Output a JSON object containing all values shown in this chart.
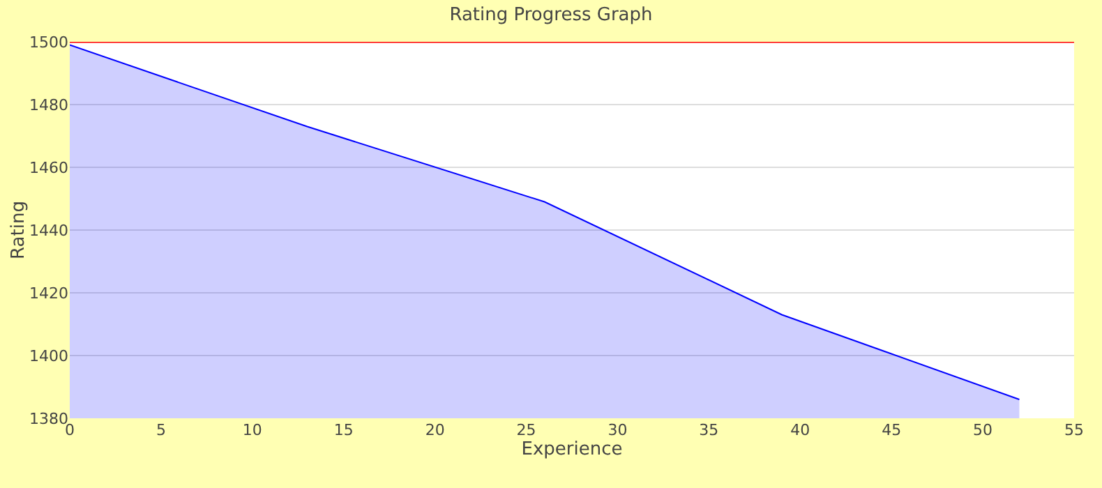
{
  "chart_data": {
    "type": "area",
    "title": "Rating Progress Graph",
    "xlabel": "Experience",
    "ylabel": "Rating",
    "x": [
      0,
      13,
      26,
      39,
      52
    ],
    "series": [
      {
        "color": "#0000ff",
        "values": [
          1499,
          1473,
          1449,
          1413,
          1386
        ]
      }
    ],
    "xlim": [
      0,
      55
    ],
    "xticks": [
      0,
      5,
      10,
      15,
      20,
      25,
      30,
      35,
      40,
      45,
      50,
      55
    ],
    "ylim": [
      1380,
      1500
    ],
    "yticks": [
      1380,
      1400,
      1420,
      1440,
      1460,
      1480,
      1500
    ],
    "ref_lines": [
      {
        "axis": "y",
        "value": 1500,
        "color": "#ff0000"
      }
    ],
    "grid": "y"
  }
}
